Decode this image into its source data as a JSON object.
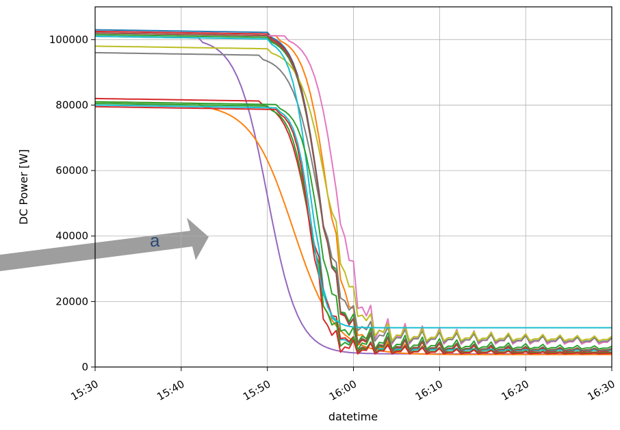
{
  "annotation": {
    "text_fragment": "a"
  },
  "chart_data": {
    "type": "line",
    "title": "",
    "xlabel": "datetime",
    "ylabel": "DC Power [W]",
    "xlim": [
      "15:30",
      "16:30"
    ],
    "ylim": [
      0,
      110000
    ],
    "grid": true,
    "legend": "none",
    "x_ticks": [
      "15:30",
      "15:40",
      "15:50",
      "16:00",
      "16:10",
      "16:20",
      "16:30"
    ],
    "y_ticks": [
      0,
      20000,
      40000,
      60000,
      80000,
      100000
    ],
    "series": [
      {
        "color": "#1f77b4",
        "start": 103000,
        "drop_start": "15:50",
        "mid": "15:56",
        "floor": 5000,
        "saw": 7000,
        "decay": 14
      },
      {
        "color": "#ff7f0e",
        "start": 102000,
        "drop_start": "15:51",
        "mid": "15:57",
        "floor": 4000,
        "saw": 6000,
        "decay": 12
      },
      {
        "color": "#2ca02c",
        "start": 101500,
        "drop_start": "15:50",
        "mid": "15:56",
        "floor": 5500,
        "saw": 8000,
        "decay": 15
      },
      {
        "color": "#d62728",
        "start": 102500,
        "drop_start": "15:50",
        "mid": "15:56",
        "floor": 4500,
        "saw": 7500,
        "decay": 14
      },
      {
        "color": "#9467bd",
        "start": 101000,
        "drop_start": "15:42",
        "mid": "15:50",
        "floor": 4000,
        "saw": 0,
        "decay": 10
      },
      {
        "color": "#e377c2",
        "start": 102000,
        "drop_start": "15:52",
        "mid": "15:58",
        "floor": 7000,
        "saw": 9000,
        "decay": 20
      },
      {
        "color": "#7f7f7f",
        "start": 96000,
        "drop_start": "15:49",
        "mid": "15:56",
        "floor": 7500,
        "saw": 6000,
        "decay": 22
      },
      {
        "color": "#bcbd22",
        "start": 98000,
        "drop_start": "15:50",
        "mid": "15:57",
        "floor": 8000,
        "saw": 6000,
        "decay": 22
      },
      {
        "color": "#17becf",
        "start": 101000,
        "drop_start": "15:50",
        "mid": "15:55",
        "floor": 5000,
        "saw": 4000,
        "decay": 10
      },
      {
        "color": "#ff7f0e",
        "start": 81000,
        "drop_start": "15:42",
        "mid": "15:53",
        "floor": 3800,
        "saw": 0,
        "decay": 8
      },
      {
        "color": "#d62728",
        "start": 82000,
        "drop_start": "15:49",
        "mid": "15:55",
        "floor": 4200,
        "saw": 5000,
        "decay": 12
      },
      {
        "color": "#2ca02c",
        "start": 80500,
        "drop_start": "15:50",
        "mid": "15:55",
        "floor": 4200,
        "saw": 6000,
        "decay": 12
      },
      {
        "color": "#d62728",
        "start": 79500,
        "drop_start": "15:51",
        "mid": "15:55",
        "floor": 4000,
        "saw": 6000,
        "decay": 12
      },
      {
        "color": "#2ca02c",
        "start": 81000,
        "drop_start": "15:51",
        "mid": "15:56",
        "floor": 5000,
        "saw": 7000,
        "decay": 14
      },
      {
        "color": "#17becf",
        "start": 80000,
        "drop_start": "15:51",
        "mid": "15:55",
        "floor": 12000,
        "saw": 0,
        "decay": 30
      },
      {
        "color": "#8c564b",
        "start": 102000,
        "drop_start": "15:50",
        "mid": "15:56",
        "floor": 5000,
        "saw": 7000,
        "decay": 14
      }
    ]
  }
}
